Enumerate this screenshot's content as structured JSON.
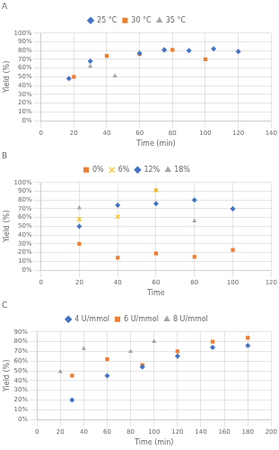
{
  "chart_data": [
    {
      "type": "scatter",
      "title": "A",
      "x_label": "Time (min)",
      "y_label": "Yield (%)",
      "series": [
        {
          "name": "25 °C",
          "color": "#4472c4",
          "marker": "diamond",
          "x": [
            17,
            30,
            60,
            75,
            90,
            105,
            120
          ],
          "values": [
            0.48,
            0.68,
            0.77,
            0.81,
            0.8,
            0.82,
            0.79
          ]
        },
        {
          "name": "30 °C",
          "color": "#ed7d31",
          "marker": "square",
          "x": [
            20,
            40,
            60,
            80,
            100
          ],
          "values": [
            0.5,
            0.74,
            0.76,
            0.81,
            0.7
          ]
        },
        {
          "name": "35 °C",
          "color": "#a5a5a5",
          "marker": "triangle",
          "x": [
            30,
            45,
            75
          ],
          "values": [
            0.62,
            0.51,
            0.8
          ]
        }
      ],
      "xlim": [
        0,
        140
      ],
      "xticks": [
        0,
        20,
        40,
        60,
        80,
        100,
        120,
        140
      ],
      "ylim": [
        0,
        1.0
      ],
      "yticks": [
        {
          "value": 0.0,
          "label": "0%"
        },
        {
          "value": 0.1,
          "label": "10%"
        },
        {
          "value": 0.2,
          "label": "20%"
        },
        {
          "value": 0.3,
          "label": "30%"
        },
        {
          "value": 0.4,
          "label": "40%"
        },
        {
          "value": 0.5,
          "label": "50%"
        },
        {
          "value": 0.6,
          "label": "60%"
        },
        {
          "value": 0.7,
          "label": "70%"
        },
        {
          "value": 0.8,
          "label": "80%"
        },
        {
          "value": 0.9,
          "label": "90%"
        },
        {
          "value": 1.0,
          "label": "100%"
        }
      ],
      "grid": true,
      "legend": "top"
    },
    {
      "type": "scatter",
      "title": "B",
      "x_label": "Time",
      "y_label": "Yield (%)",
      "series": [
        {
          "name": "0%",
          "color": "#ed7d31",
          "marker": "square",
          "x": [
            20,
            40,
            60,
            80,
            100
          ],
          "values": [
            0.3,
            0.14,
            0.19,
            0.15,
            0.23
          ]
        },
        {
          "name": "6%",
          "color": "#ffc000",
          "marker": "x",
          "x": [
            20,
            40,
            60
          ],
          "values": [
            0.58,
            0.61,
            0.91
          ]
        },
        {
          "name": "12%",
          "color": "#4472c4",
          "marker": "diamond",
          "x": [
            20,
            40,
            60,
            80,
            100
          ],
          "values": [
            0.5,
            0.74,
            0.76,
            0.8,
            0.7
          ]
        },
        {
          "name": "18%",
          "color": "#a5a5a5",
          "marker": "triangle",
          "x": [
            20,
            60,
            80
          ],
          "values": [
            0.71,
            0.91,
            0.56
          ]
        }
      ],
      "xlim": [
        0,
        120
      ],
      "xticks": [
        0,
        20,
        40,
        60,
        80,
        100,
        120
      ],
      "ylim": [
        0,
        1.0
      ],
      "yticks": [
        {
          "value": 0.0,
          "label": "0%"
        },
        {
          "value": 0.1,
          "label": "10%"
        },
        {
          "value": 0.2,
          "label": "20%"
        },
        {
          "value": 0.3,
          "label": "30%"
        },
        {
          "value": 0.4,
          "label": "40%"
        },
        {
          "value": 0.5,
          "label": "50%"
        },
        {
          "value": 0.6,
          "label": "60%"
        },
        {
          "value": 0.7,
          "label": "70%"
        },
        {
          "value": 0.8,
          "label": "80%"
        },
        {
          "value": 0.9,
          "label": "90%"
        },
        {
          "value": 1.0,
          "label": "100%"
        }
      ],
      "grid": true,
      "legend": "top"
    },
    {
      "type": "scatter",
      "title": "C",
      "x_label": "Time (min)",
      "y_label": "Yield (%)",
      "series": [
        {
          "name": "4 U/mmol",
          "color": "#4472c4",
          "marker": "diamond",
          "x": [
            30,
            60,
            90,
            120,
            150,
            180
          ],
          "values": [
            0.2,
            0.45,
            0.54,
            0.65,
            0.74,
            0.76
          ]
        },
        {
          "name": "6 U/mmol",
          "color": "#ed7d31",
          "marker": "square",
          "x": [
            30,
            60,
            90,
            120,
            150,
            180
          ],
          "values": [
            0.45,
            0.62,
            0.56,
            0.7,
            0.8,
            0.84
          ]
        },
        {
          "name": "8 U/mmol",
          "color": "#a5a5a5",
          "marker": "triangle",
          "x": [
            20,
            40,
            80,
            100
          ],
          "values": [
            0.49,
            0.73,
            0.7,
            0.8
          ]
        }
      ],
      "xlim": [
        0,
        200
      ],
      "xticks": [
        0,
        20,
        40,
        60,
        80,
        100,
        120,
        140,
        160,
        180,
        200
      ],
      "ylim": [
        0,
        0.9
      ],
      "yticks": [
        {
          "value": 0.0,
          "label": "0%"
        },
        {
          "value": 0.1,
          "label": "10%"
        },
        {
          "value": 0.2,
          "label": "20%"
        },
        {
          "value": 0.3,
          "label": "30%"
        },
        {
          "value": 0.4,
          "label": "40%"
        },
        {
          "value": 0.5,
          "label": "50%"
        },
        {
          "value": 0.6,
          "label": "60%"
        },
        {
          "value": 0.7,
          "label": "70%"
        },
        {
          "value": 0.8,
          "label": "80%"
        },
        {
          "value": 0.9,
          "label": "90%"
        }
      ],
      "grid": true,
      "legend": "top"
    }
  ]
}
